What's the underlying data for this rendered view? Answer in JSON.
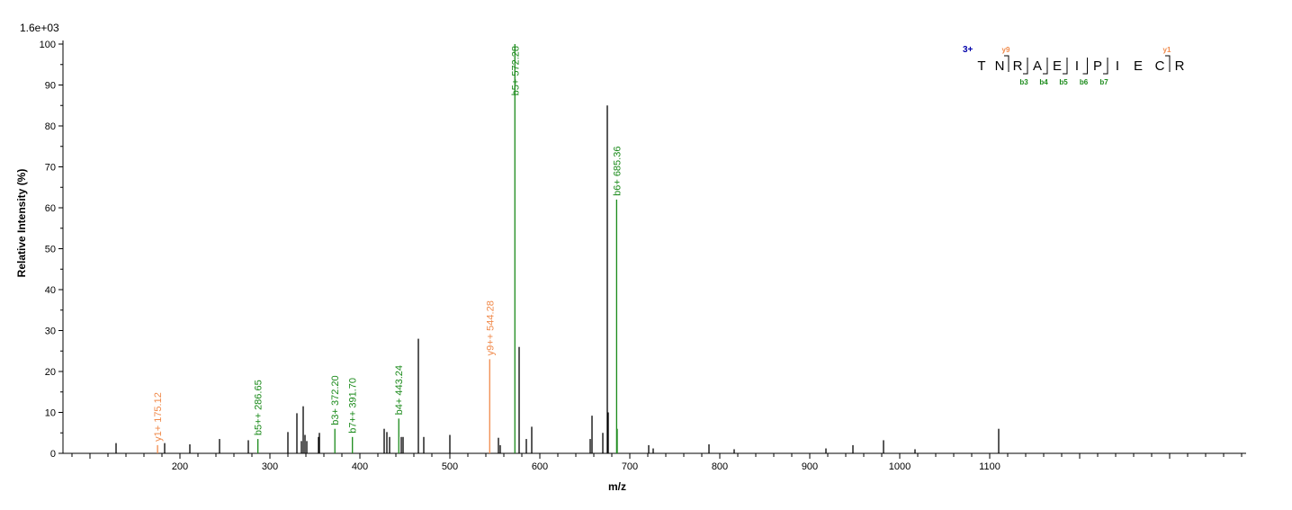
{
  "chart_data": {
    "type": "bar",
    "scale_label": "1.6e+03",
    "xlabel": "m/z",
    "ylabel": "Relative  Intensity (%)",
    "xlim": [
      70,
      1385
    ],
    "ylim": [
      0,
      100
    ],
    "x_ticks": [
      200,
      300,
      400,
      500,
      600,
      700,
      800,
      900,
      1000,
      1100
    ],
    "y_ticks": [
      0,
      10,
      20,
      30,
      40,
      50,
      60,
      70,
      80,
      90,
      100
    ],
    "colors": {
      "b_ion": "#1a8a1a",
      "y_ion": "#f08a4b",
      "unannotated": "#000000",
      "charge": "#0000aa"
    },
    "peaks": [
      {
        "mz": 129,
        "intensity": 2.5
      },
      {
        "mz": 183,
        "intensity": 2.5
      },
      {
        "mz": 211,
        "intensity": 2.2
      },
      {
        "mz": 244,
        "intensity": 3.5
      },
      {
        "mz": 276,
        "intensity": 3.2
      },
      {
        "mz": 320,
        "intensity": 5.2
      },
      {
        "mz": 330,
        "intensity": 9.8
      },
      {
        "mz": 335,
        "intensity": 3.0
      },
      {
        "mz": 337,
        "intensity": 11.5
      },
      {
        "mz": 339,
        "intensity": 4.5
      },
      {
        "mz": 341,
        "intensity": 3.0
      },
      {
        "mz": 354,
        "intensity": 4.0
      },
      {
        "mz": 355,
        "intensity": 5.0
      },
      {
        "mz": 427,
        "intensity": 6.0
      },
      {
        "mz": 430,
        "intensity": 5.2
      },
      {
        "mz": 433,
        "intensity": 4.0
      },
      {
        "mz": 446,
        "intensity": 4.0
      },
      {
        "mz": 448,
        "intensity": 4.0
      },
      {
        "mz": 465,
        "intensity": 28.0
      },
      {
        "mz": 471,
        "intensity": 4.0
      },
      {
        "mz": 500,
        "intensity": 4.5
      },
      {
        "mz": 554,
        "intensity": 3.8
      },
      {
        "mz": 556,
        "intensity": 2.0
      },
      {
        "mz": 577,
        "intensity": 26.0
      },
      {
        "mz": 585,
        "intensity": 3.5
      },
      {
        "mz": 591,
        "intensity": 6.5
      },
      {
        "mz": 656,
        "intensity": 3.5
      },
      {
        "mz": 658,
        "intensity": 9.2
      },
      {
        "mz": 670,
        "intensity": 5.0
      },
      {
        "mz": 675,
        "intensity": 85.0
      },
      {
        "mz": 676,
        "intensity": 10.0
      },
      {
        "mz": 721,
        "intensity": 2.0
      },
      {
        "mz": 726,
        "intensity": 1.2
      },
      {
        "mz": 788,
        "intensity": 2.2
      },
      {
        "mz": 816,
        "intensity": 1.0
      },
      {
        "mz": 918,
        "intensity": 1.2
      },
      {
        "mz": 948,
        "intensity": 2.0
      },
      {
        "mz": 982,
        "intensity": 3.2
      },
      {
        "mz": 1017,
        "intensity": 1.0
      },
      {
        "mz": 1110,
        "intensity": 6.0
      }
    ],
    "annotated_peaks": [
      {
        "mz": 175.12,
        "intensity": 2.0,
        "label": "y1+ 175.12",
        "ion": "y"
      },
      {
        "mz": 286.65,
        "intensity": 3.5,
        "label": "b5++ 286.65",
        "ion": "b"
      },
      {
        "mz": 372.2,
        "intensity": 6.0,
        "label": "b3+ 372.20",
        "ion": "b"
      },
      {
        "mz": 391.7,
        "intensity": 4.0,
        "label": "b7++ 391.70",
        "ion": "b"
      },
      {
        "mz": 443.24,
        "intensity": 8.5,
        "label": "b4+ 443.24",
        "ion": "b"
      },
      {
        "mz": 544.28,
        "intensity": 23.0,
        "label": "y9++ 544.28",
        "ion": "y"
      },
      {
        "mz": 572.28,
        "intensity": 100.0,
        "label": "b5+ 572.28",
        "ion": "b"
      },
      {
        "mz": 685.36,
        "intensity": 62.0,
        "label": "b6+ 685.36",
        "ion": "b"
      },
      {
        "mz": 686,
        "intensity": 6.0,
        "label": "",
        "ion": "b"
      }
    ],
    "annotations": {
      "charge": "3+",
      "sequence": [
        "T",
        "N",
        "R",
        "A",
        "E",
        "I",
        "P",
        "I",
        "E",
        "C",
        "R"
      ],
      "y_fragments": [
        {
          "after": 2,
          "label": "y9"
        },
        {
          "after": 10,
          "label": "y1"
        }
      ],
      "b_fragments": [
        {
          "after": 2,
          "label": "b3"
        },
        {
          "after": 3,
          "label": "b4"
        },
        {
          "after": 4,
          "label": "b5"
        },
        {
          "after": 5,
          "label": "b6"
        },
        {
          "after": 6,
          "label": "b7"
        }
      ]
    }
  }
}
